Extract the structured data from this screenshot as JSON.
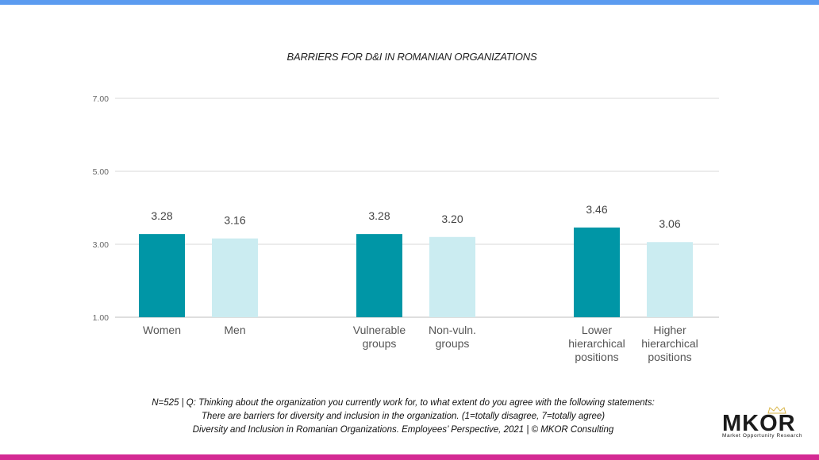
{
  "chart_data": {
    "type": "bar",
    "title": "BARRIERS FOR D&I IN ROMANIAN ORGANIZATIONS",
    "ylim": [
      1,
      7
    ],
    "yticks": [
      "1.00",
      "3.00",
      "5.00",
      "7.00"
    ],
    "grid": true,
    "categories": [
      [
        "Women"
      ],
      [
        "Men"
      ],
      [
        "Vulnerable",
        "groups"
      ],
      [
        "Non-vuln.",
        "groups"
      ],
      [
        "Lower",
        "hierarchical",
        "positions"
      ],
      [
        "Higher",
        "hierarchical",
        "positions"
      ]
    ],
    "values": [
      3.28,
      3.16,
      3.28,
      3.2,
      3.46,
      3.06
    ],
    "value_labels": [
      "3.28",
      "3.16",
      "3.28",
      "3.20",
      "3.46",
      "3.06"
    ],
    "colors": [
      "#0096a6",
      "#cbecf1",
      "#0096a6",
      "#cbecf1",
      "#0096a6",
      "#cbecf1"
    ]
  },
  "footer": {
    "line1": "N=525 | Q: Thinking about the organization you currently work for, to what extent do you agree with the following statements:",
    "line2": "There are barriers for diversity and inclusion in the organization. (1=totally disagree, 7=totally agree)",
    "line3": "Diversity and Inclusion in Romanian Organizations. Employees’ Perspective, 2021 | © MKOR Consulting"
  },
  "logo": {
    "name": "MKOR",
    "tagline": "Market Opportunity Research"
  },
  "colors": {
    "top_bar": "#5b9bf0",
    "bottom_bar": "#d42a93",
    "primary_bar": "#0096a6",
    "secondary_bar": "#cbecf1"
  }
}
